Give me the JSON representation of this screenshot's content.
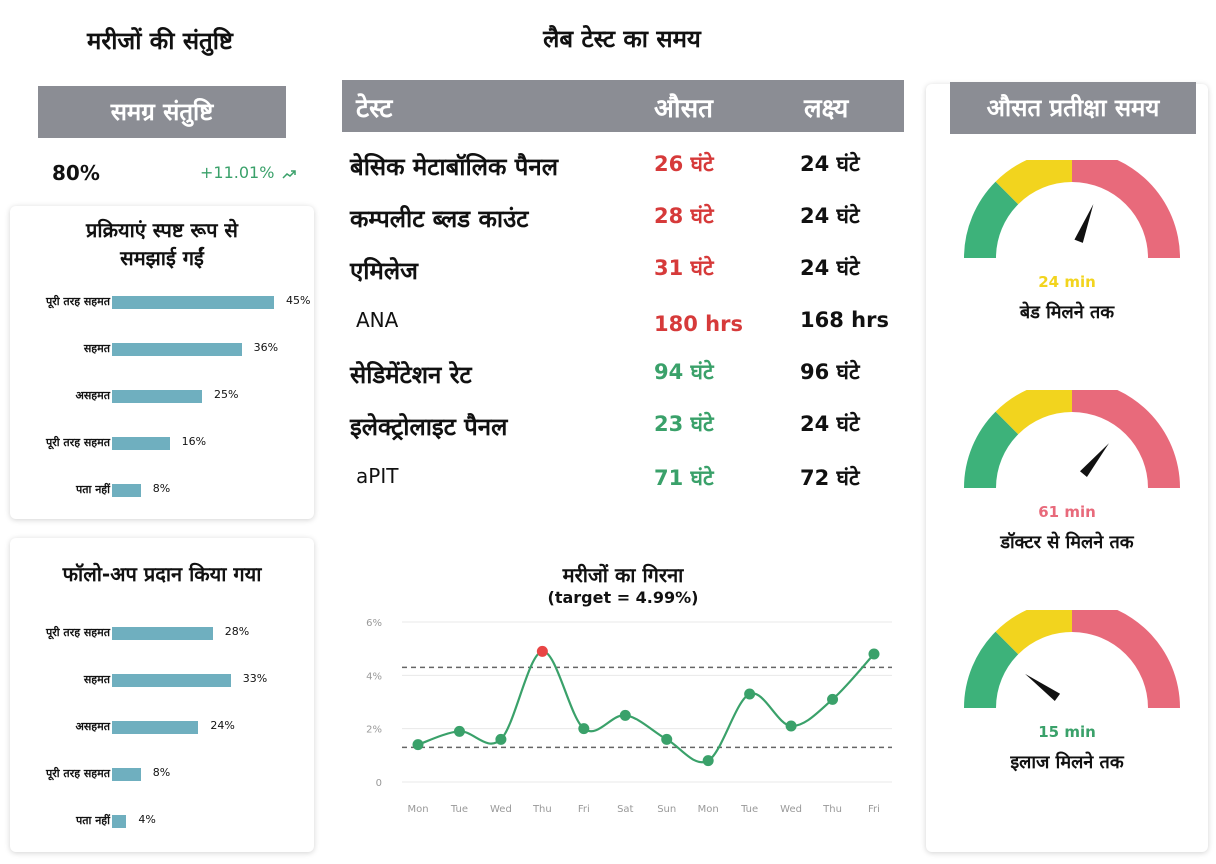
{
  "colors": {
    "header_gray": "#8b8d94",
    "bar": "#6fafbf",
    "red": "#d63a3a",
    "green": "#3aa16a",
    "line": "#3aa16a",
    "gauge_green": "#3db27a",
    "gauge_yellow": "#f2d41e",
    "gauge_pink": "#e86a7b"
  },
  "satisfaction": {
    "title": "मरीजों की संतुष्टि",
    "overall_label": "समग्र संतुष्टि",
    "overall_value": "80%",
    "change": "+11.01%",
    "change_icon": "trend-up-icon"
  },
  "survey_cards": [
    {
      "title_line1": "प्रक्रियाएं स्पष्ट रूप से",
      "title_line2": "समझाई गईं",
      "rows": [
        {
          "label": "पूरी तरह सहमत",
          "value": 45,
          "display": "45%"
        },
        {
          "label": "सहमत",
          "value": 36,
          "display": "36%"
        },
        {
          "label": "असहमत",
          "value": 25,
          "display": "25%"
        },
        {
          "label": "पूरी तरह सहमत",
          "value": 16,
          "display": "16%"
        },
        {
          "label": "पता नहीं",
          "value": 8,
          "display": "8%"
        }
      ]
    },
    {
      "title_line1": "फॉलो-अप प्रदान किया गया",
      "title_line2": "",
      "rows": [
        {
          "label": "पूरी तरह सहमत",
          "value": 28,
          "display": "28%"
        },
        {
          "label": "सहमत",
          "value": 33,
          "display": "33%"
        },
        {
          "label": "असहमत",
          "value": 24,
          "display": "24%"
        },
        {
          "label": "पूरी तरह सहमत",
          "value": 8,
          "display": "8%"
        },
        {
          "label": "पता नहीं",
          "value": 4,
          "display": "4%"
        }
      ]
    }
  ],
  "lab": {
    "title": "लैब टेस्ट का समय",
    "headers": {
      "test": "टेस्ट",
      "avg": "औसत",
      "target": "लक्ष्य"
    },
    "rows": [
      {
        "name": "बेसिक मेटाबॉलिक पैनल",
        "avg": "26 घंटे",
        "target": "24 घंटे",
        "status": "red"
      },
      {
        "name": "कम्पलीट ब्लड काउंट",
        "avg": "28 घंटे",
        "target": "24 घंटे",
        "status": "red"
      },
      {
        "name": "एमिलेज",
        "avg": "31 घंटे",
        "target": "24 घंटे",
        "status": "red"
      },
      {
        "name": "ANA",
        "avg": "180 hrs",
        "target": "168 hrs",
        "status": "red"
      },
      {
        "name": "सेडिमेंटेशन रेट",
        "avg": "94 घंटे",
        "target": "96 घंटे",
        "status": "green"
      },
      {
        "name": "इलेक्ट्रोलाइट पैनल",
        "avg": "23 घंटे",
        "target": "24 घंटे",
        "status": "green"
      },
      {
        "name": "aPIT",
        "avg": "71 घंटे",
        "target": "72 घंटे",
        "status": "green"
      }
    ]
  },
  "chart_data": {
    "type": "line",
    "title": "मरीजों का गिरना",
    "subtitle": "(target = 4.99%)",
    "categories": [
      "Mon",
      "Tue",
      "Wed",
      "Thu",
      "Fri",
      "Sat",
      "Sun",
      "Mon",
      "Tue",
      "Wed",
      "Thu",
      "Fri"
    ],
    "yticks": [
      "6%",
      "4%",
      "2%",
      "0"
    ],
    "ylim": [
      0,
      6
    ],
    "reference_lines": [
      4.3,
      1.3
    ],
    "series": [
      {
        "values": [
          1.4,
          1.9,
          1.6,
          4.9,
          2.0,
          2.5,
          1.6,
          0.8,
          3.3,
          2.1,
          3.1,
          4.8
        ]
      }
    ],
    "highlight_index": 3,
    "grid": true
  },
  "wait": {
    "title": "औसत प्रतीक्षा समय",
    "gauges": [
      {
        "value_text": "24 min",
        "label": "बेड मिलने तक",
        "level": 0.62,
        "value_color": "#f2d41e"
      },
      {
        "value_text": "61 min",
        "label": "डॉक्टर से मिलने तक",
        "level": 0.72,
        "value_color": "#e86a7b"
      },
      {
        "value_text": "15 min",
        "label": "इलाज मिलने तक",
        "level": 0.2,
        "value_color": "#3aa16a"
      }
    ]
  }
}
